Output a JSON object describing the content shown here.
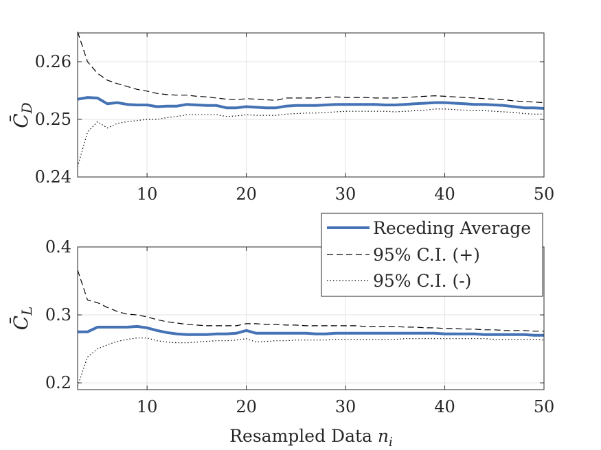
{
  "chart_data": [
    {
      "type": "line",
      "ylabel": "C̄_D",
      "ylabel_base": "C̄",
      "ylabel_sub": "D",
      "xlabel": "",
      "xlim": [
        3,
        50
      ],
      "ylim": [
        0.24,
        0.265
      ],
      "xticks": [
        10,
        20,
        30,
        40,
        50
      ],
      "xtick_labels": [
        "10",
        "20",
        "30",
        "40",
        "50"
      ],
      "yticks": [
        0.24,
        0.25,
        0.26
      ],
      "ytick_labels": [
        "0.24",
        "0.25",
        "0.26"
      ],
      "grid": true,
      "series": [
        {
          "name": "Receding Average",
          "x": [
            3,
            4,
            5,
            6,
            7,
            8,
            9,
            10,
            11,
            12,
            13,
            14,
            15,
            16,
            17,
            18,
            19,
            20,
            21,
            22,
            23,
            24,
            25,
            26,
            27,
            28,
            29,
            30,
            31,
            32,
            33,
            34,
            35,
            36,
            37,
            38,
            39,
            40,
            41,
            42,
            43,
            44,
            45,
            46,
            47,
            48,
            49,
            50
          ],
          "values": [
            0.2535,
            0.2538,
            0.2537,
            0.2527,
            0.2529,
            0.2526,
            0.2525,
            0.2525,
            0.2522,
            0.2523,
            0.2523,
            0.2526,
            0.2525,
            0.2524,
            0.2524,
            0.252,
            0.252,
            0.2522,
            0.2521,
            0.252,
            0.252,
            0.2523,
            0.2524,
            0.2524,
            0.2524,
            0.2525,
            0.2526,
            0.2526,
            0.2526,
            0.2526,
            0.2526,
            0.2525,
            0.2525,
            0.2526,
            0.2527,
            0.2528,
            0.2529,
            0.2529,
            0.2528,
            0.2527,
            0.2526,
            0.2526,
            0.2525,
            0.2524,
            0.2522,
            0.252,
            0.252,
            0.2519
          ]
        },
        {
          "name": "95% C.I. (+)",
          "x": [
            3,
            4,
            5,
            6,
            7,
            8,
            9,
            10,
            11,
            12,
            13,
            14,
            15,
            16,
            17,
            18,
            19,
            20,
            21,
            22,
            23,
            24,
            25,
            26,
            27,
            28,
            29,
            30,
            31,
            32,
            33,
            34,
            35,
            36,
            37,
            38,
            39,
            40,
            41,
            42,
            43,
            44,
            45,
            46,
            47,
            48,
            49,
            50
          ],
          "values": [
            0.2652,
            0.26,
            0.258,
            0.2568,
            0.2562,
            0.2557,
            0.2552,
            0.2549,
            0.2545,
            0.2543,
            0.2542,
            0.2542,
            0.254,
            0.2539,
            0.2537,
            0.2535,
            0.2534,
            0.2536,
            0.2535,
            0.2534,
            0.2533,
            0.2537,
            0.2537,
            0.2537,
            0.2537,
            0.2538,
            0.2539,
            0.2538,
            0.2538,
            0.2538,
            0.2537,
            0.2537,
            0.2537,
            0.2538,
            0.2539,
            0.254,
            0.2541,
            0.254,
            0.2539,
            0.2538,
            0.2537,
            0.2536,
            0.2535,
            0.2534,
            0.2532,
            0.2531,
            0.253,
            0.2529
          ]
        },
        {
          "name": "95% C.I. (-)",
          "x": [
            3,
            4,
            5,
            6,
            7,
            8,
            9,
            10,
            11,
            12,
            13,
            14,
            15,
            16,
            17,
            18,
            19,
            20,
            21,
            22,
            23,
            24,
            25,
            26,
            27,
            28,
            29,
            30,
            31,
            32,
            33,
            34,
            35,
            36,
            37,
            38,
            39,
            40,
            41,
            42,
            43,
            44,
            45,
            46,
            47,
            48,
            49,
            50
          ],
          "values": [
            0.2418,
            0.2478,
            0.2496,
            0.2485,
            0.2493,
            0.2496,
            0.2498,
            0.25,
            0.25,
            0.2503,
            0.2505,
            0.2508,
            0.2508,
            0.2508,
            0.2508,
            0.2505,
            0.2506,
            0.2508,
            0.2507,
            0.2507,
            0.2507,
            0.2509,
            0.251,
            0.2511,
            0.2511,
            0.2512,
            0.2513,
            0.2514,
            0.2514,
            0.2514,
            0.2514,
            0.2514,
            0.2513,
            0.2514,
            0.2515,
            0.2516,
            0.2518,
            0.2518,
            0.2517,
            0.2516,
            0.2515,
            0.2515,
            0.2514,
            0.2513,
            0.2512,
            0.251,
            0.2509,
            0.2509
          ]
        }
      ]
    },
    {
      "type": "line",
      "ylabel": "C̄_L",
      "ylabel_base": "C̄",
      "ylabel_sub": "L",
      "xlabel": "Resampled Data",
      "xlabel_var": "n",
      "xlabel_sub": "i",
      "xlim": [
        3,
        50
      ],
      "ylim": [
        0.19,
        0.4
      ],
      "xticks": [
        10,
        20,
        30,
        40,
        50
      ],
      "xtick_labels": [
        "10",
        "20",
        "30",
        "40",
        "50"
      ],
      "yticks": [
        0.2,
        0.3,
        0.4
      ],
      "ytick_labels": [
        "0.2",
        "0.3",
        "0.4"
      ],
      "grid": true,
      "legend": {
        "placement": "top-right",
        "entries": [
          "Receding Average",
          "95% C.I. (+)",
          "95% C.I. (-)"
        ]
      },
      "series": [
        {
          "name": "Receding Average",
          "x": [
            3,
            4,
            5,
            6,
            7,
            8,
            9,
            10,
            11,
            12,
            13,
            14,
            15,
            16,
            17,
            18,
            19,
            20,
            21,
            22,
            23,
            24,
            25,
            26,
            27,
            28,
            29,
            30,
            31,
            32,
            33,
            34,
            35,
            36,
            37,
            38,
            39,
            40,
            41,
            42,
            43,
            44,
            45,
            46,
            47,
            48,
            49,
            50
          ],
          "values": [
            0.275,
            0.275,
            0.282,
            0.282,
            0.282,
            0.282,
            0.283,
            0.281,
            0.277,
            0.274,
            0.272,
            0.271,
            0.271,
            0.271,
            0.272,
            0.272,
            0.273,
            0.277,
            0.273,
            0.273,
            0.273,
            0.273,
            0.273,
            0.273,
            0.272,
            0.272,
            0.273,
            0.273,
            0.273,
            0.273,
            0.273,
            0.273,
            0.273,
            0.273,
            0.273,
            0.273,
            0.273,
            0.272,
            0.272,
            0.272,
            0.272,
            0.271,
            0.271,
            0.271,
            0.271,
            0.271,
            0.27,
            0.27
          ]
        },
        {
          "name": "95% C.I. (+)",
          "x": [
            3,
            4,
            5,
            6,
            7,
            8,
            9,
            10,
            11,
            12,
            13,
            14,
            15,
            16,
            17,
            18,
            19,
            20,
            21,
            22,
            23,
            24,
            25,
            26,
            27,
            28,
            29,
            30,
            31,
            32,
            33,
            34,
            35,
            36,
            37,
            38,
            39,
            40,
            41,
            42,
            43,
            44,
            45,
            46,
            47,
            48,
            49,
            50
          ],
          "values": [
            0.366,
            0.322,
            0.318,
            0.311,
            0.305,
            0.301,
            0.3,
            0.297,
            0.293,
            0.29,
            0.288,
            0.286,
            0.285,
            0.284,
            0.284,
            0.284,
            0.284,
            0.287,
            0.287,
            0.286,
            0.286,
            0.285,
            0.285,
            0.284,
            0.284,
            0.284,
            0.284,
            0.284,
            0.284,
            0.283,
            0.283,
            0.283,
            0.283,
            0.282,
            0.282,
            0.281,
            0.281,
            0.28,
            0.28,
            0.279,
            0.279,
            0.278,
            0.278,
            0.277,
            0.277,
            0.277,
            0.276,
            0.276
          ]
        },
        {
          "name": "95% C.I. (-)",
          "x": [
            3,
            4,
            5,
            6,
            7,
            8,
            9,
            10,
            11,
            12,
            13,
            14,
            15,
            16,
            17,
            18,
            19,
            20,
            21,
            22,
            23,
            24,
            25,
            26,
            27,
            28,
            29,
            30,
            31,
            32,
            33,
            34,
            35,
            36,
            37,
            38,
            39,
            40,
            41,
            42,
            43,
            44,
            45,
            46,
            47,
            48,
            49,
            50
          ],
          "values": [
            0.195,
            0.238,
            0.25,
            0.256,
            0.261,
            0.264,
            0.266,
            0.266,
            0.262,
            0.26,
            0.259,
            0.259,
            0.26,
            0.261,
            0.262,
            0.262,
            0.263,
            0.265,
            0.26,
            0.261,
            0.262,
            0.262,
            0.263,
            0.263,
            0.263,
            0.263,
            0.264,
            0.264,
            0.264,
            0.264,
            0.264,
            0.264,
            0.264,
            0.265,
            0.265,
            0.265,
            0.265,
            0.265,
            0.265,
            0.265,
            0.265,
            0.265,
            0.264,
            0.264,
            0.264,
            0.264,
            0.264,
            0.263
          ]
        }
      ]
    }
  ],
  "colors": {
    "average": "#4472b4",
    "ci": "#000000",
    "axis": "#262626",
    "grid": "#e3e3e3"
  }
}
